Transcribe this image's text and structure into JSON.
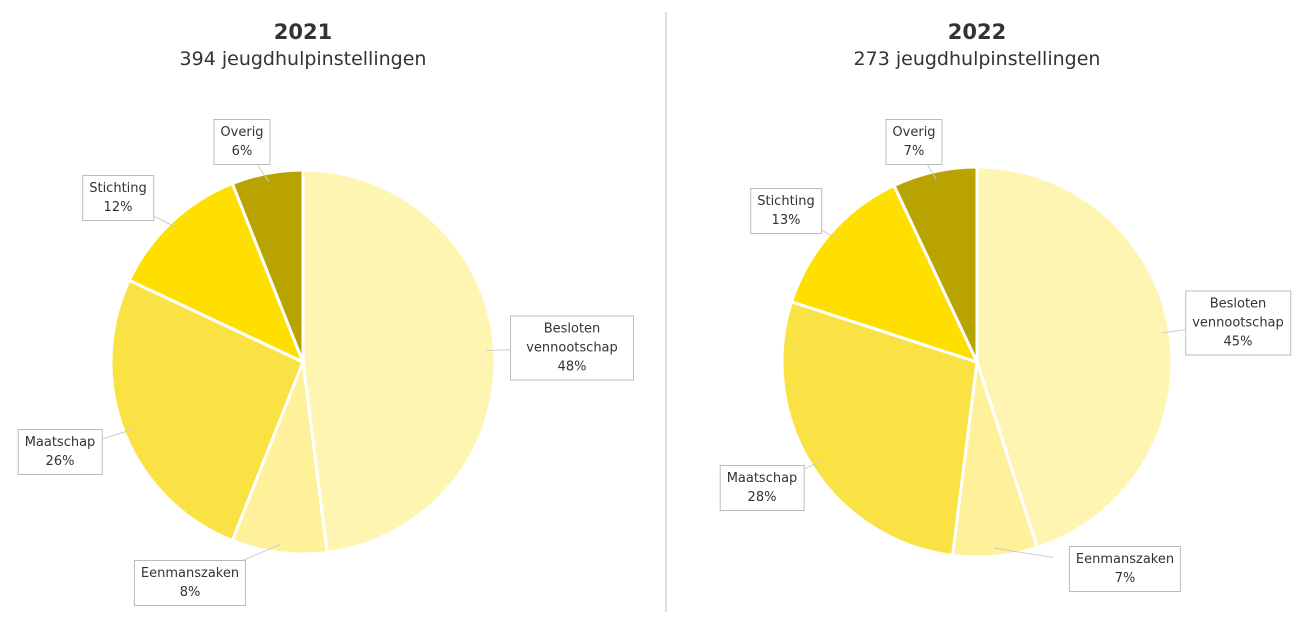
{
  "chart_data": [
    {
      "type": "pie",
      "title": "2021",
      "subtitle": "394 jeugdhulpinstellingen",
      "categories": [
        "Besloten vennootschap",
        "Eenmanszaken",
        "Maatschap",
        "Stichting",
        "Overig"
      ],
      "values": [
        48,
        8,
        26,
        12,
        6
      ],
      "value_labels": [
        "48%",
        "8%",
        "26%",
        "12%",
        "6%"
      ],
      "colors": [
        "#fff5b3",
        "#fff09a",
        "#fbe244",
        "#ffdf00",
        "#b9a300"
      ]
    },
    {
      "type": "pie",
      "title": "2022",
      "subtitle": "273 jeugdhulpinstellingen",
      "categories": [
        "Besloten vennootschap",
        "Eenmanszaken",
        "Maatschap",
        "Stichting",
        "Overig"
      ],
      "values": [
        45,
        7,
        28,
        13,
        7
      ],
      "value_labels": [
        "45%",
        "7%",
        "28%",
        "13%",
        "7%"
      ],
      "colors": [
        "#fff5b3",
        "#fff09a",
        "#fbe244",
        "#ffdf00",
        "#b9a300"
      ]
    }
  ]
}
